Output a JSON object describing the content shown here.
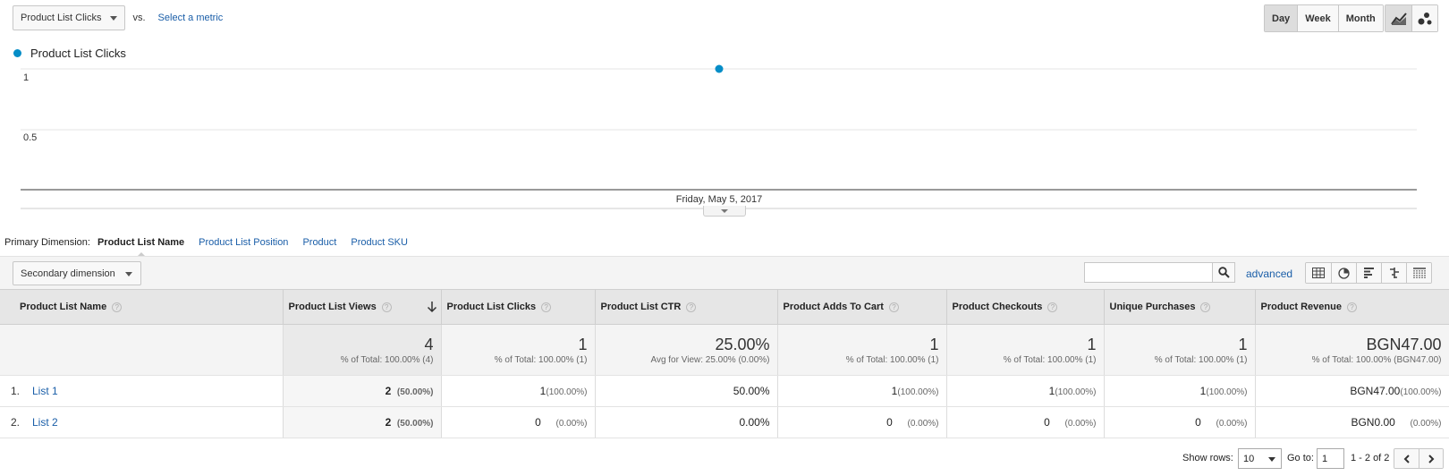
{
  "topbar": {
    "metric_selected": "Product List Clicks",
    "vs_label": "vs.",
    "select_metric": "Select a metric",
    "periods": [
      "Day",
      "Week",
      "Month"
    ],
    "chart_types": [
      "line-chart-icon",
      "motion-chart-icon"
    ]
  },
  "chart_data": {
    "type": "line",
    "series": [
      {
        "name": "Product List Clicks",
        "values": [
          1
        ]
      }
    ],
    "x": [
      "Friday, May 5, 2017"
    ],
    "y_ticks": [
      "1",
      "0.5"
    ],
    "ylim": [
      0,
      1
    ],
    "grid": true,
    "legend": "top-left",
    "color": "#058dc7"
  },
  "primary_dimension": {
    "label": "Primary Dimension:",
    "selected": "Product List Name",
    "options": [
      "Product List Position",
      "Product",
      "Product SKU"
    ]
  },
  "toolbar": {
    "secondary_dimension": "Secondary dimension",
    "search_placeholder": "",
    "advanced": "advanced",
    "view_icons": [
      "table-view-icon",
      "pie-view-icon",
      "performance-view-icon",
      "comparison-view-icon",
      "pivot-view-icon"
    ]
  },
  "table": {
    "headers": [
      "Product List Name",
      "Product List Views",
      "Product List Clicks",
      "Product List CTR",
      "Product Adds To Cart",
      "Product Checkouts",
      "Unique Purchases",
      "Product Revenue"
    ],
    "totals": [
      {
        "value": "4",
        "sub": "% of Total: 100.00% (4)"
      },
      {
        "value": "1",
        "sub": "% of Total: 100.00% (1)"
      },
      {
        "value": "25.00%",
        "sub": "Avg for View: 25.00% (0.00%)"
      },
      {
        "value": "1",
        "sub": "% of Total: 100.00% (1)"
      },
      {
        "value": "1",
        "sub": "% of Total: 100.00% (1)"
      },
      {
        "value": "1",
        "sub": "% of Total: 100.00% (1)"
      },
      {
        "value": "BGN47.00",
        "sub": "% of Total: 100.00% (BGN47.00)"
      }
    ],
    "rows": [
      {
        "index": "1.",
        "name": "List 1",
        "views": "2",
        "views_pct": "(50.00%)",
        "clicks": "1",
        "clicks_pct": "(100.00%)",
        "ctr": "50.00%",
        "adds": "1",
        "adds_pct": "(100.00%)",
        "checkouts": "1",
        "checkouts_pct": "(100.00%)",
        "purchases": "1",
        "purchases_pct": "(100.00%)",
        "revenue": "BGN47.00",
        "revenue_pct": "(100.00%)"
      },
      {
        "index": "2.",
        "name": "List 2",
        "views": "2",
        "views_pct": "(50.00%)",
        "clicks": "0",
        "clicks_pct": "(0.00%)",
        "ctr": "0.00%",
        "adds": "0",
        "adds_pct": "(0.00%)",
        "checkouts": "0",
        "checkouts_pct": "(0.00%)",
        "purchases": "0",
        "purchases_pct": "(0.00%)",
        "revenue": "BGN0.00",
        "revenue_pct": "(0.00%)"
      }
    ]
  },
  "pager": {
    "show_rows_label": "Show rows:",
    "show_rows_value": "10",
    "goto_label": "Go to:",
    "goto_value": "1",
    "range": "1 - 2 of 2"
  }
}
